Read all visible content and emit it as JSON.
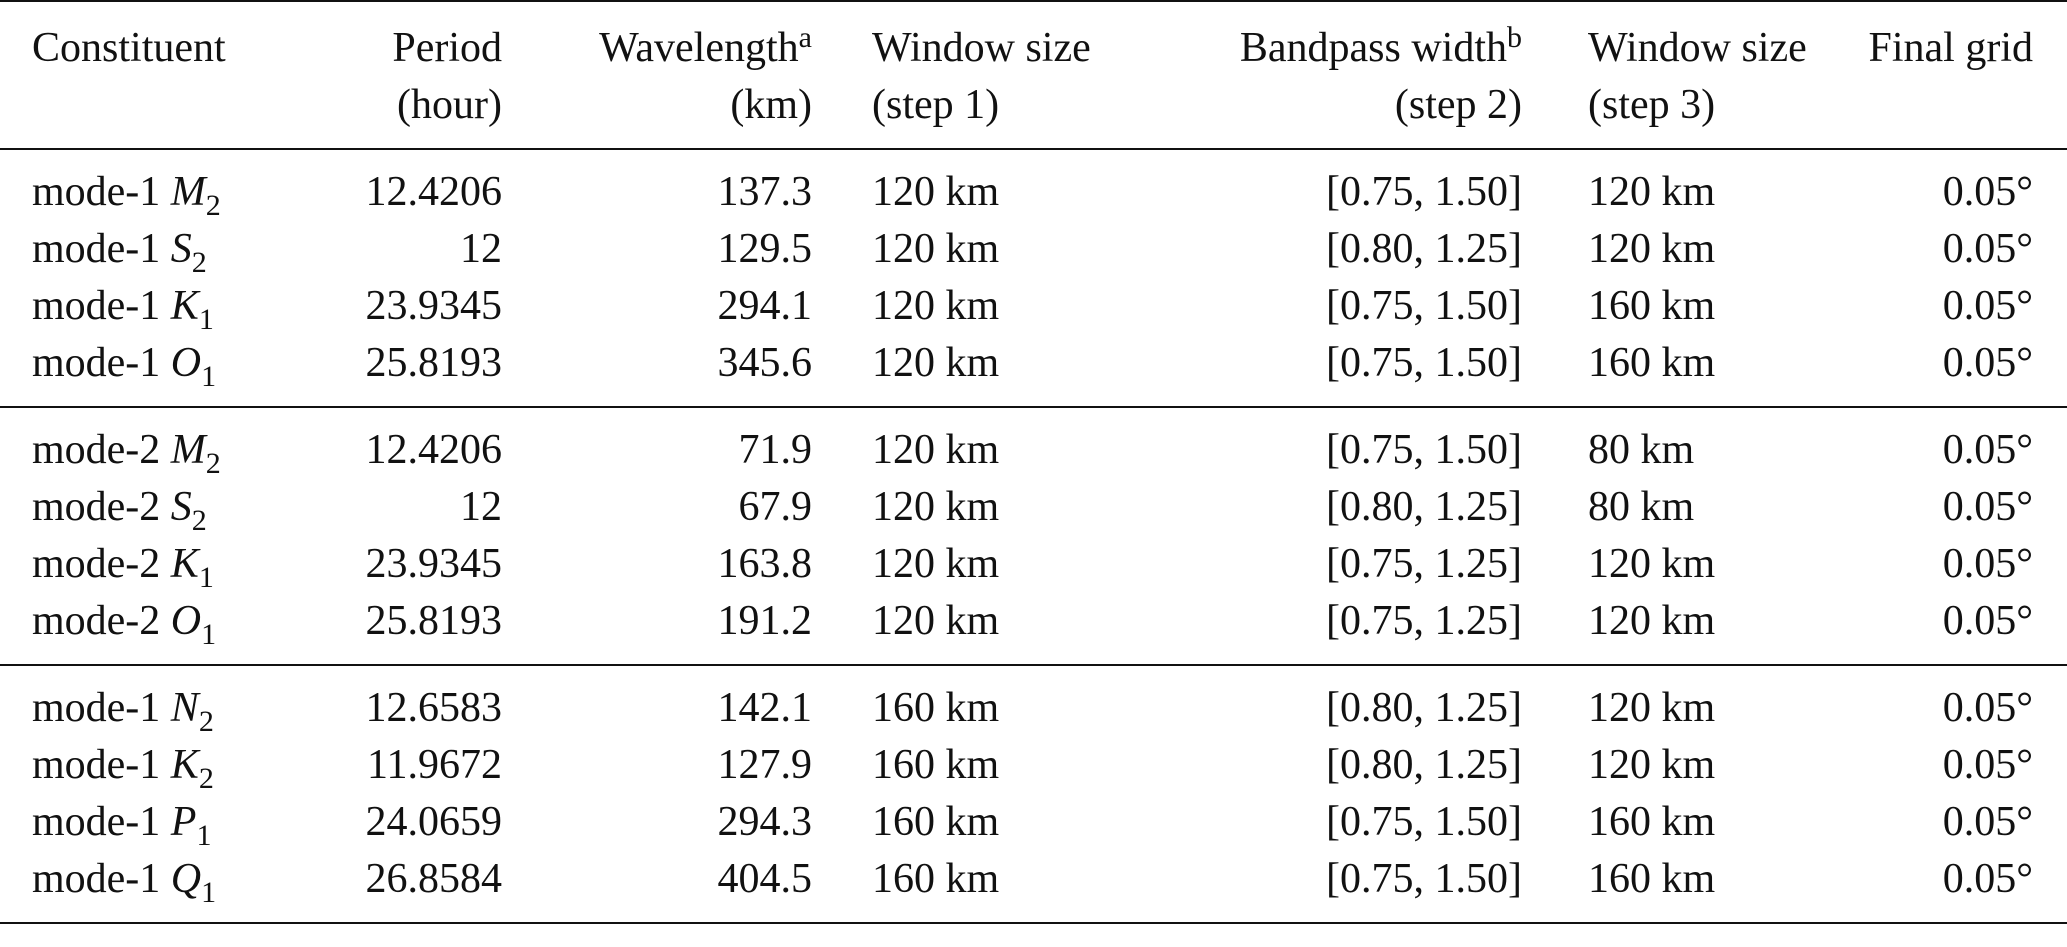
{
  "header": {
    "row1": [
      "Constituent",
      "Period",
      "Wavelength",
      "Window size",
      "Bandpass width",
      "Window size",
      "Final grid"
    ],
    "row2": [
      "",
      "(hour)",
      "(km)",
      "(step 1)",
      "(step 2)",
      "(step 3)",
      ""
    ],
    "wavelength_note": "a",
    "bandpass_note": "b"
  },
  "groups": [
    [
      {
        "mode": "mode-1",
        "sym": "M",
        "sub": "2",
        "period": "12.4206",
        "wavelength": "137.3",
        "win1": "120 km",
        "bandpass": "[0.75, 1.50]",
        "win3": "120 km",
        "grid": "0.05°"
      },
      {
        "mode": "mode-1",
        "sym": "S",
        "sub": "2",
        "period": "12",
        "wavelength": "129.5",
        "win1": "120 km",
        "bandpass": "[0.80, 1.25]",
        "win3": "120 km",
        "grid": "0.05°"
      },
      {
        "mode": "mode-1",
        "sym": "K",
        "sub": "1",
        "period": "23.9345",
        "wavelength": "294.1",
        "win1": "120 km",
        "bandpass": "[0.75, 1.50]",
        "win3": "160 km",
        "grid": "0.05°"
      },
      {
        "mode": "mode-1",
        "sym": "O",
        "sub": "1",
        "period": "25.8193",
        "wavelength": "345.6",
        "win1": "120 km",
        "bandpass": "[0.75, 1.50]",
        "win3": "160 km",
        "grid": "0.05°"
      }
    ],
    [
      {
        "mode": "mode-2",
        "sym": "M",
        "sub": "2",
        "period": "12.4206",
        "wavelength": "71.9",
        "win1": "120 km",
        "bandpass": "[0.75, 1.50]",
        "win3": "80 km",
        "grid": "0.05°"
      },
      {
        "mode": "mode-2",
        "sym": "S",
        "sub": "2",
        "period": "12",
        "wavelength": "67.9",
        "win1": "120 km",
        "bandpass": "[0.80, 1.25]",
        "win3": "80 km",
        "grid": "0.05°"
      },
      {
        "mode": "mode-2",
        "sym": "K",
        "sub": "1",
        "period": "23.9345",
        "wavelength": "163.8",
        "win1": "120 km",
        "bandpass": "[0.75, 1.25]",
        "win3": "120 km",
        "grid": "0.05°"
      },
      {
        "mode": "mode-2",
        "sym": "O",
        "sub": "1",
        "period": "25.8193",
        "wavelength": "191.2",
        "win1": "120 km",
        "bandpass": "[0.75, 1.25]",
        "win3": "120 km",
        "grid": "0.05°"
      }
    ],
    [
      {
        "mode": "mode-1",
        "sym": "N",
        "sub": "2",
        "period": "12.6583",
        "wavelength": "142.1",
        "win1": "160 km",
        "bandpass": "[0.80, 1.25]",
        "win3": "120 km",
        "grid": "0.05°"
      },
      {
        "mode": "mode-1",
        "sym": "K",
        "sub": "2",
        "period": "11.9672",
        "wavelength": "127.9",
        "win1": "160 km",
        "bandpass": "[0.80, 1.25]",
        "win3": "120 km",
        "grid": "0.05°"
      },
      {
        "mode": "mode-1",
        "sym": "P",
        "sub": "1",
        "period": "24.0659",
        "wavelength": "294.3",
        "win1": "160 km",
        "bandpass": "[0.75, 1.50]",
        "win3": "160 km",
        "grid": "0.05°"
      },
      {
        "mode": "mode-1",
        "sym": "Q",
        "sub": "1",
        "period": "26.8584",
        "wavelength": "404.5",
        "win1": "160 km",
        "bandpass": "[0.75, 1.50]",
        "win3": "160 km",
        "grid": "0.05°"
      }
    ]
  ]
}
